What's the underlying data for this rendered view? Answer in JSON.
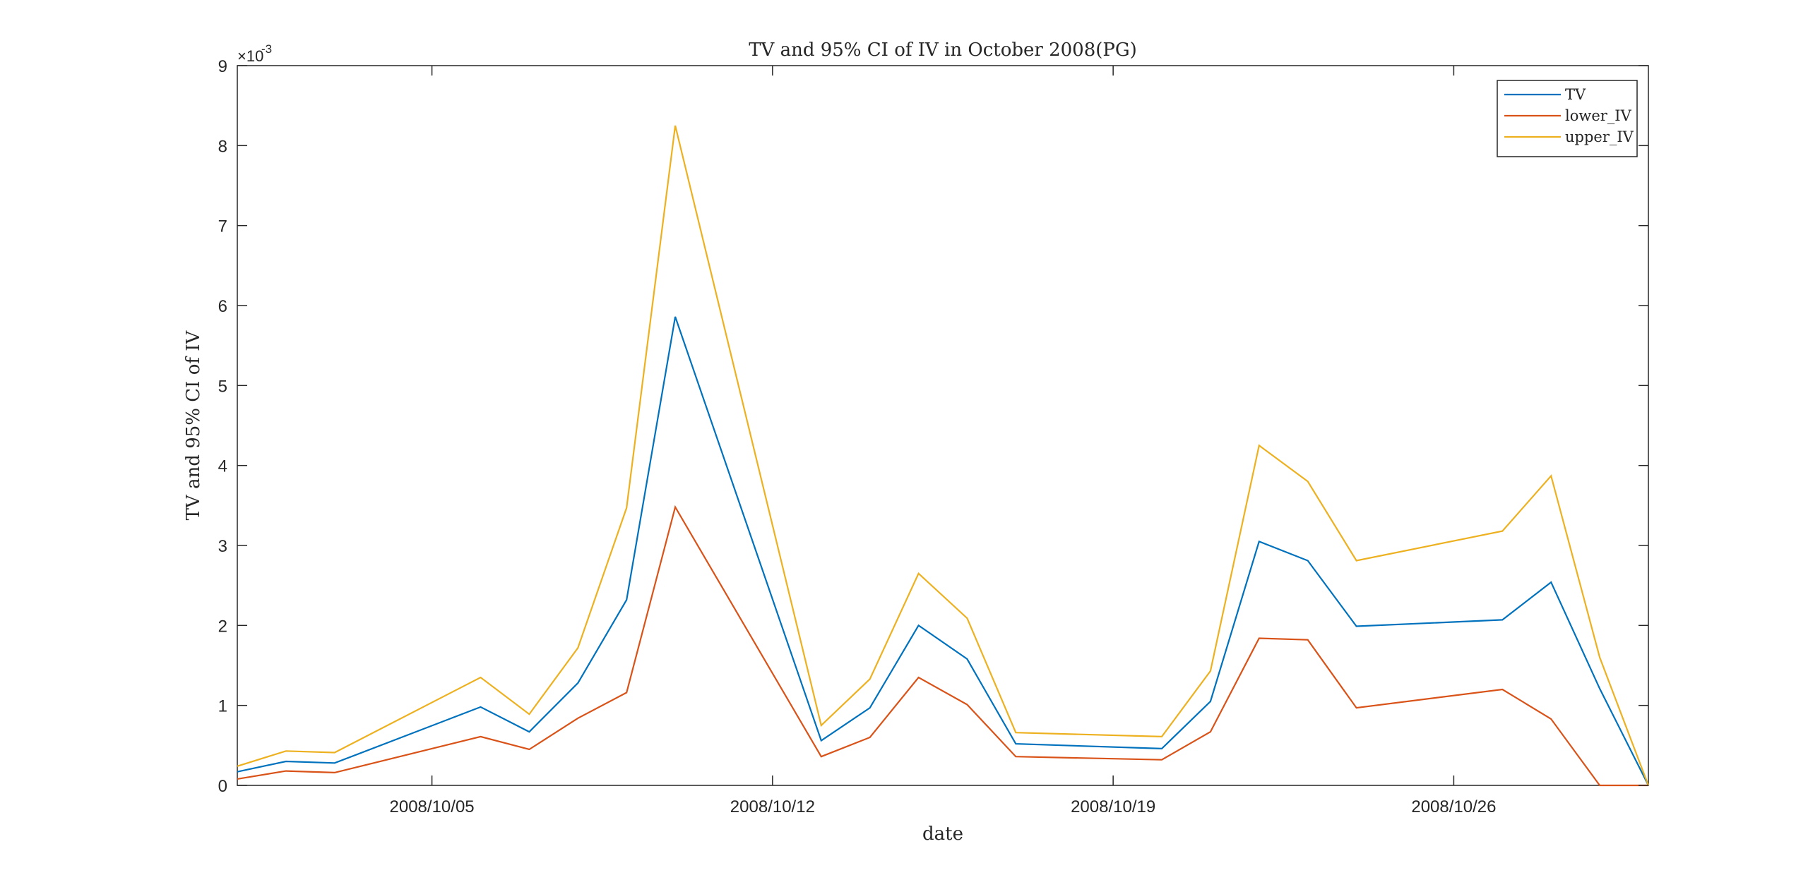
{
  "chart_data": {
    "type": "line",
    "title": "TV and 95% CI of IV in October 2008(PG)",
    "xlabel": "date",
    "ylabel": "TV and 95% CI of IV",
    "y_exponent_label": "×10",
    "y_exponent_power": "-3",
    "x_tick_labels": [
      "2008/10/05",
      "2008/10/12",
      "2008/10/19",
      "2008/10/26"
    ],
    "x_ticks": [
      "2008/10/05",
      "2008/10/12",
      "2008/10/19",
      "2008/10/26"
    ],
    "xlim": [
      "2008/10/01",
      "2008/10/30"
    ],
    "y_tick_labels": [
      "0",
      "1",
      "2",
      "3",
      "4",
      "5",
      "6",
      "7",
      "8",
      "9"
    ],
    "ylim": [
      0,
      0.009
    ],
    "grid": false,
    "legend_position": "top-right",
    "x": [
      "2008/10/01",
      "2008/10/02",
      "2008/10/03",
      "2008/10/06",
      "2008/10/07",
      "2008/10/08",
      "2008/10/09",
      "2008/10/10",
      "2008/10/13",
      "2008/10/14",
      "2008/10/15",
      "2008/10/16",
      "2008/10/17",
      "2008/10/20",
      "2008/10/21",
      "2008/10/22",
      "2008/10/23",
      "2008/10/24",
      "2008/10/27",
      "2008/10/28",
      "2008/10/29",
      "2008/10/30"
    ],
    "series": [
      {
        "name": "TV",
        "color": "#0072BD",
        "values": [
          0.00017,
          0.0003,
          0.00028,
          0.00098,
          0.00067,
          0.00128,
          0.00232,
          0.00586,
          0.00056,
          0.00097,
          0.002,
          0.00158,
          0.00052,
          0.00046,
          0.00105,
          0.00305,
          0.00281,
          0.00199,
          0.00207,
          0.00254,
          0.00121,
          0
        ]
      },
      {
        "name": "lower_IV",
        "color": "#D95319",
        "values": [
          8e-05,
          0.00018,
          0.00016,
          0.00061,
          0.00045,
          0.00084,
          0.00116,
          0.00348,
          0.00036,
          0.0006,
          0.00135,
          0.00101,
          0.00036,
          0.00032,
          0.00067,
          0.00184,
          0.00182,
          0.00097,
          0.0012,
          0.00083,
          0,
          0
        ]
      },
      {
        "name": "upper_IV",
        "color": "#EDB120",
        "values": [
          0.00024,
          0.00043,
          0.00041,
          0.00135,
          0.00089,
          0.00172,
          0.00347,
          0.00825,
          0.00075,
          0.00133,
          0.00265,
          0.00209,
          0.00066,
          0.00061,
          0.00143,
          0.00425,
          0.0038,
          0.00281,
          0.00318,
          0.00387,
          0.0016,
          0
        ]
      }
    ]
  }
}
